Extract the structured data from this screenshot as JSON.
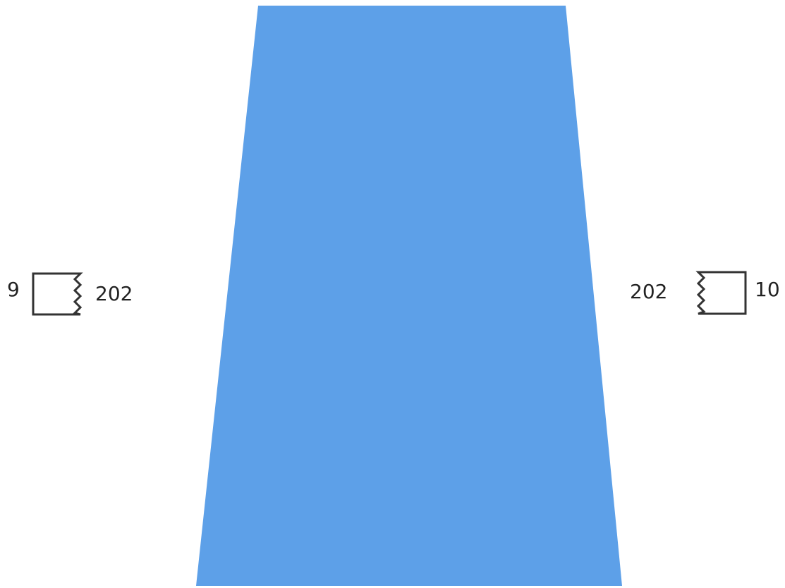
{
  "colors": {
    "shape_fill": "#5da0e8",
    "symbol_stroke": "#333333",
    "label_text": "#222222",
    "background": "#ffffff"
  },
  "left_side": {
    "outer_label": "9",
    "inner_label": "202",
    "symbol_icon": "broken-edge-box-icon"
  },
  "right_side": {
    "outer_label": "10",
    "inner_label": "202",
    "symbol_icon": "broken-edge-box-icon"
  }
}
